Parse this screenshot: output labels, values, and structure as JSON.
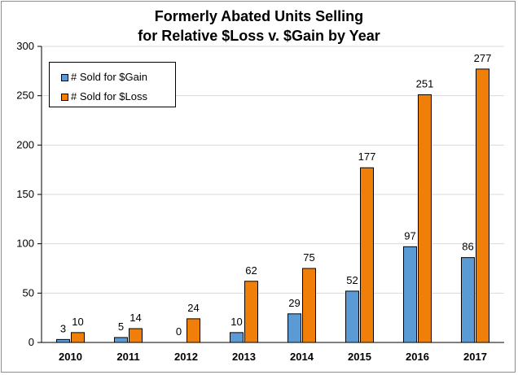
{
  "chart_data": {
    "type": "bar",
    "title_lines": [
      "Formerly Abated Units Selling",
      "for Relative $Loss v. $Gain by Year"
    ],
    "categories": [
      "2010",
      "2011",
      "2012",
      "2013",
      "2014",
      "2015",
      "2016",
      "2017"
    ],
    "series": [
      {
        "name": "# Sold for $Gain",
        "color": "#5b9bd5",
        "values": [
          3,
          5,
          0,
          10,
          29,
          52,
          97,
          86
        ]
      },
      {
        "name": "# Sold for $Loss",
        "color": "#f07f09",
        "values": [
          10,
          14,
          24,
          62,
          75,
          177,
          251,
          277
        ]
      }
    ],
    "data_labels": true,
    "ylim": [
      0,
      300
    ],
    "yticks": [
      "0",
      "50",
      "100",
      "150",
      "200",
      "250",
      "300"
    ],
    "grid": true,
    "legend_position": "top-left"
  }
}
